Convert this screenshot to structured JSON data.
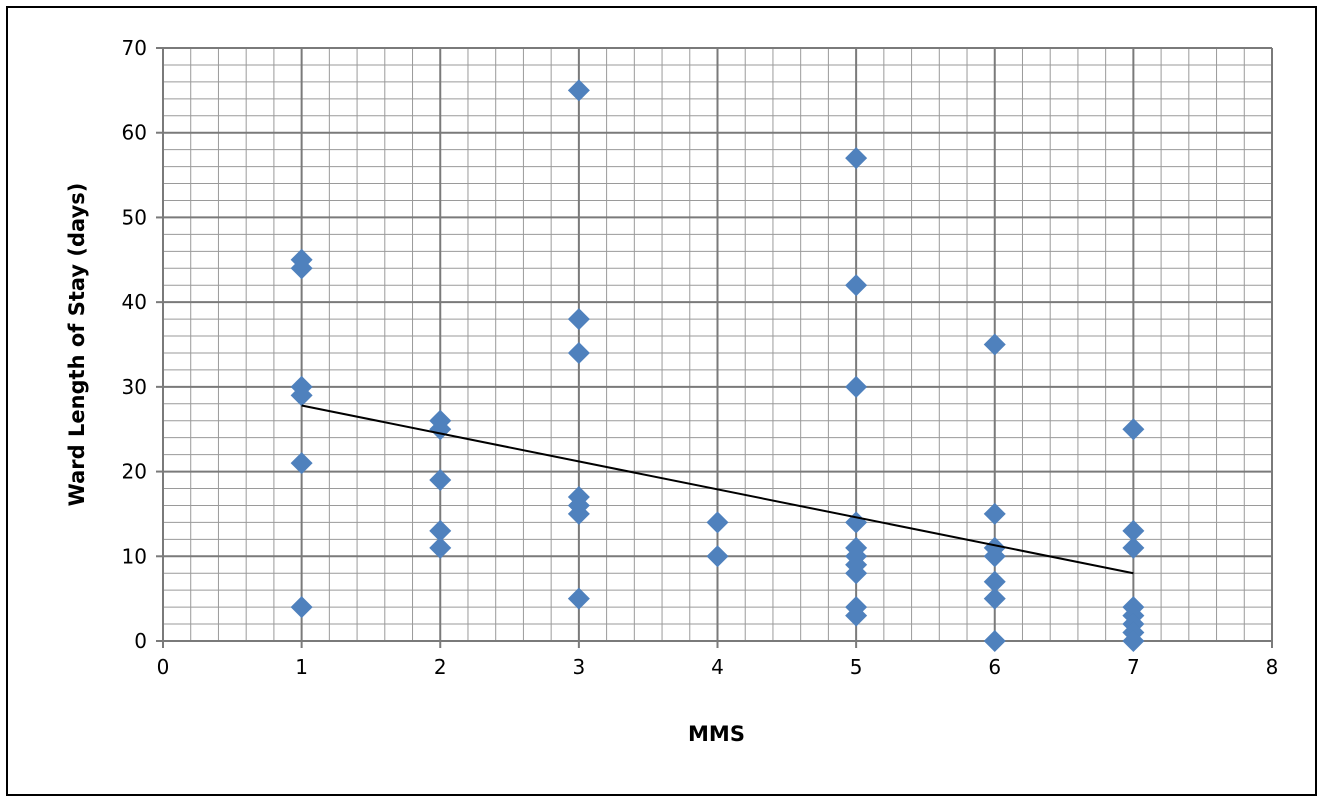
{
  "chart_data": {
    "type": "scatter",
    "title": "",
    "xlabel": "MMS",
    "ylabel": "Ward Length of Stay (days)",
    "xlim": [
      0,
      8
    ],
    "ylim": [
      0,
      70
    ],
    "x_ticks": [
      0,
      1,
      2,
      3,
      4,
      5,
      6,
      7,
      8
    ],
    "y_ticks": [
      0,
      10,
      20,
      30,
      40,
      50,
      60,
      70
    ],
    "grid": true,
    "legend": "none",
    "marker": "diamond",
    "marker_color": "#4f81bd",
    "series": [
      {
        "points": [
          [
            1,
            45
          ],
          [
            1,
            44
          ],
          [
            1,
            30
          ],
          [
            1,
            29
          ],
          [
            1,
            21
          ],
          [
            1,
            4
          ],
          [
            2,
            26
          ],
          [
            2,
            25
          ],
          [
            2,
            19
          ],
          [
            2,
            13
          ],
          [
            2,
            11
          ],
          [
            3,
            65
          ],
          [
            3,
            38
          ],
          [
            3,
            34
          ],
          [
            3,
            17
          ],
          [
            3,
            16
          ],
          [
            3,
            15
          ],
          [
            3,
            5
          ],
          [
            4,
            14
          ],
          [
            4,
            10
          ],
          [
            5,
            57
          ],
          [
            5,
            42
          ],
          [
            5,
            30
          ],
          [
            5,
            14
          ],
          [
            5,
            11
          ],
          [
            5,
            10
          ],
          [
            5,
            9
          ],
          [
            5,
            8
          ],
          [
            5,
            4
          ],
          [
            5,
            3
          ],
          [
            6,
            35
          ],
          [
            6,
            15
          ],
          [
            6,
            11
          ],
          [
            6,
            10
          ],
          [
            6,
            7
          ],
          [
            6,
            5
          ],
          [
            6,
            0
          ],
          [
            7,
            25
          ],
          [
            7,
            13
          ],
          [
            7,
            11
          ],
          [
            7,
            4
          ],
          [
            7,
            3
          ],
          [
            7,
            2
          ],
          [
            7,
            1
          ],
          [
            7,
            0
          ]
        ]
      }
    ],
    "trendline": {
      "type": "linear",
      "x": [
        1,
        7
      ],
      "y": [
        27.8,
        8.0
      ],
      "color": "#000000"
    }
  }
}
